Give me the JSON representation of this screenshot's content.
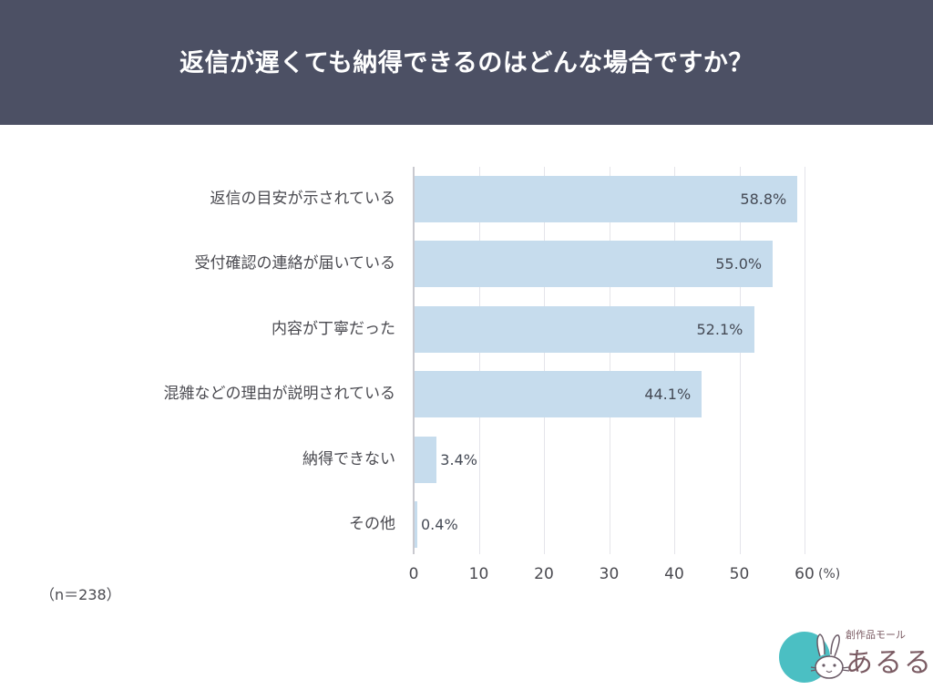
{
  "header": {
    "title": "返信が遅くても納得できるのはどんな場合ですか？"
  },
  "note": "（n＝238）",
  "axis": {
    "ticks": [
      "0",
      "10",
      "20",
      "30",
      "40",
      "50",
      "60"
    ],
    "unit": "(%)"
  },
  "bars": [
    {
      "label": "返信の目安が示されている",
      "value_text": "58.8%"
    },
    {
      "label": "受付確認の連絡が届いている",
      "value_text": "55.0%"
    },
    {
      "label": "内容が丁寧だった",
      "value_text": "52.1%"
    },
    {
      "label": "混雑などの理由が説明されている",
      "value_text": "44.1%"
    },
    {
      "label": "納得できない",
      "value_text": "3.4%"
    },
    {
      "label": "その他",
      "value_text": "0.4%"
    }
  ],
  "logo": {
    "tagline": "創作品モール",
    "name": "あるる",
    "icon_char": "あ"
  },
  "colors": {
    "header_bg": "#4c5064",
    "bar": "#c6dced",
    "logo_circle": "#4bbfc3"
  },
  "chart_data": {
    "type": "bar",
    "orientation": "horizontal",
    "title": "返信が遅くても納得できるのはどんな場合ですか？",
    "categories": [
      "返信の目安が示されている",
      "受付確認の連絡が届いている",
      "内容が丁寧だった",
      "混雑などの理由が説明されている",
      "納得できない",
      "その他"
    ],
    "values": [
      58.8,
      55.0,
      52.1,
      44.1,
      3.4,
      0.4
    ],
    "xlabel": "(%)",
    "ylabel": "",
    "xlim": [
      0,
      60
    ],
    "xticks": [
      0,
      10,
      20,
      30,
      40,
      50,
      60
    ],
    "grid": true,
    "data_labels": true,
    "annotation": "（n＝238）",
    "legend": null
  }
}
